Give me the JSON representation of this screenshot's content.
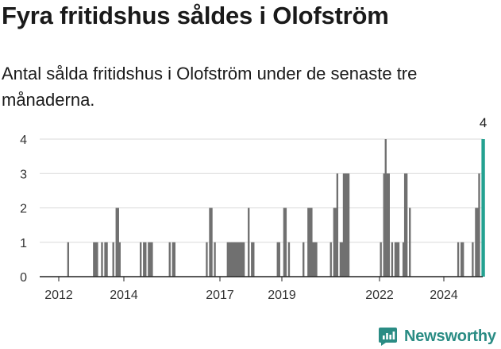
{
  "header": {
    "title": "Fyra fritidshus såldes i Olofström",
    "subtitle": "Antal sålda fritidshus i Olofström under de senaste tre månaderna."
  },
  "brand": {
    "name": "Newsworthy",
    "icon": "newsworthy-logo-icon",
    "color": "#2a8c84"
  },
  "chart_data": {
    "type": "bar",
    "title": "",
    "xlabel": "",
    "ylabel": "",
    "ylim": [
      0,
      4
    ],
    "yticks": [
      0,
      1,
      2,
      3,
      4
    ],
    "xticks": [
      "2012",
      "2014",
      "2017",
      "2019",
      "2022",
      "2024"
    ],
    "grid": true,
    "legend": "none",
    "bar_color": "#707070",
    "highlight_color": "#24a190",
    "highlight_label": "4",
    "series": [
      {
        "values": [
          0,
          0,
          0,
          0,
          0,
          0,
          1,
          0,
          0,
          0,
          0,
          0,
          0,
          0,
          0,
          0,
          0,
          0,
          0,
          0,
          0,
          0,
          1,
          1,
          1,
          0,
          0,
          1,
          0,
          1,
          1,
          0,
          0,
          0,
          1,
          0,
          2,
          2,
          1,
          0,
          0,
          0,
          0,
          0,
          0,
          0,
          0,
          0,
          0,
          0,
          0,
          1,
          0,
          1,
          1,
          0,
          1,
          1,
          1,
          0,
          0,
          0,
          0,
          0,
          0,
          0,
          0,
          0,
          0,
          1,
          0,
          1,
          1,
          0,
          0,
          0,
          0,
          0,
          0,
          0,
          0,
          0,
          0,
          0,
          0,
          0,
          0,
          0,
          0,
          0,
          0,
          0,
          1,
          0,
          2,
          2,
          0,
          1,
          0,
          0,
          0,
          0,
          0,
          0,
          0,
          1,
          1,
          1,
          1,
          1,
          1,
          1,
          1,
          1,
          1,
          1,
          0,
          0,
          2,
          0,
          1,
          1,
          0,
          0,
          0,
          0,
          0,
          0,
          0,
          0,
          0,
          0,
          0,
          0,
          0,
          0,
          1,
          1,
          0,
          0,
          2,
          2,
          0,
          1,
          0,
          0,
          0,
          0,
          0,
          0,
          0,
          0,
          1,
          0,
          0,
          2,
          2,
          2,
          1,
          1,
          1,
          0,
          0,
          0,
          0,
          0,
          0,
          0,
          0,
          1,
          0,
          2,
          2,
          3,
          0,
          1,
          1,
          3,
          3,
          3,
          3,
          0,
          0,
          0,
          0,
          0,
          0,
          0,
          0,
          0,
          0,
          0,
          0,
          0,
          0,
          0,
          0,
          0,
          0,
          0,
          1,
          0,
          3,
          4,
          3,
          3,
          0,
          1,
          0,
          1,
          1,
          1,
          0,
          0,
          1,
          3,
          3,
          0,
          2,
          0,
          0,
          0,
          0,
          0,
          0,
          0,
          0,
          0,
          0,
          0,
          0,
          0,
          0,
          0,
          0,
          0,
          0,
          0,
          0,
          0,
          0,
          0,
          0,
          0,
          0,
          0,
          0,
          0,
          1,
          0,
          1,
          1,
          0,
          0,
          0,
          0,
          0,
          1,
          0,
          2,
          2,
          3,
          0,
          4,
          4
        ]
      }
    ]
  }
}
